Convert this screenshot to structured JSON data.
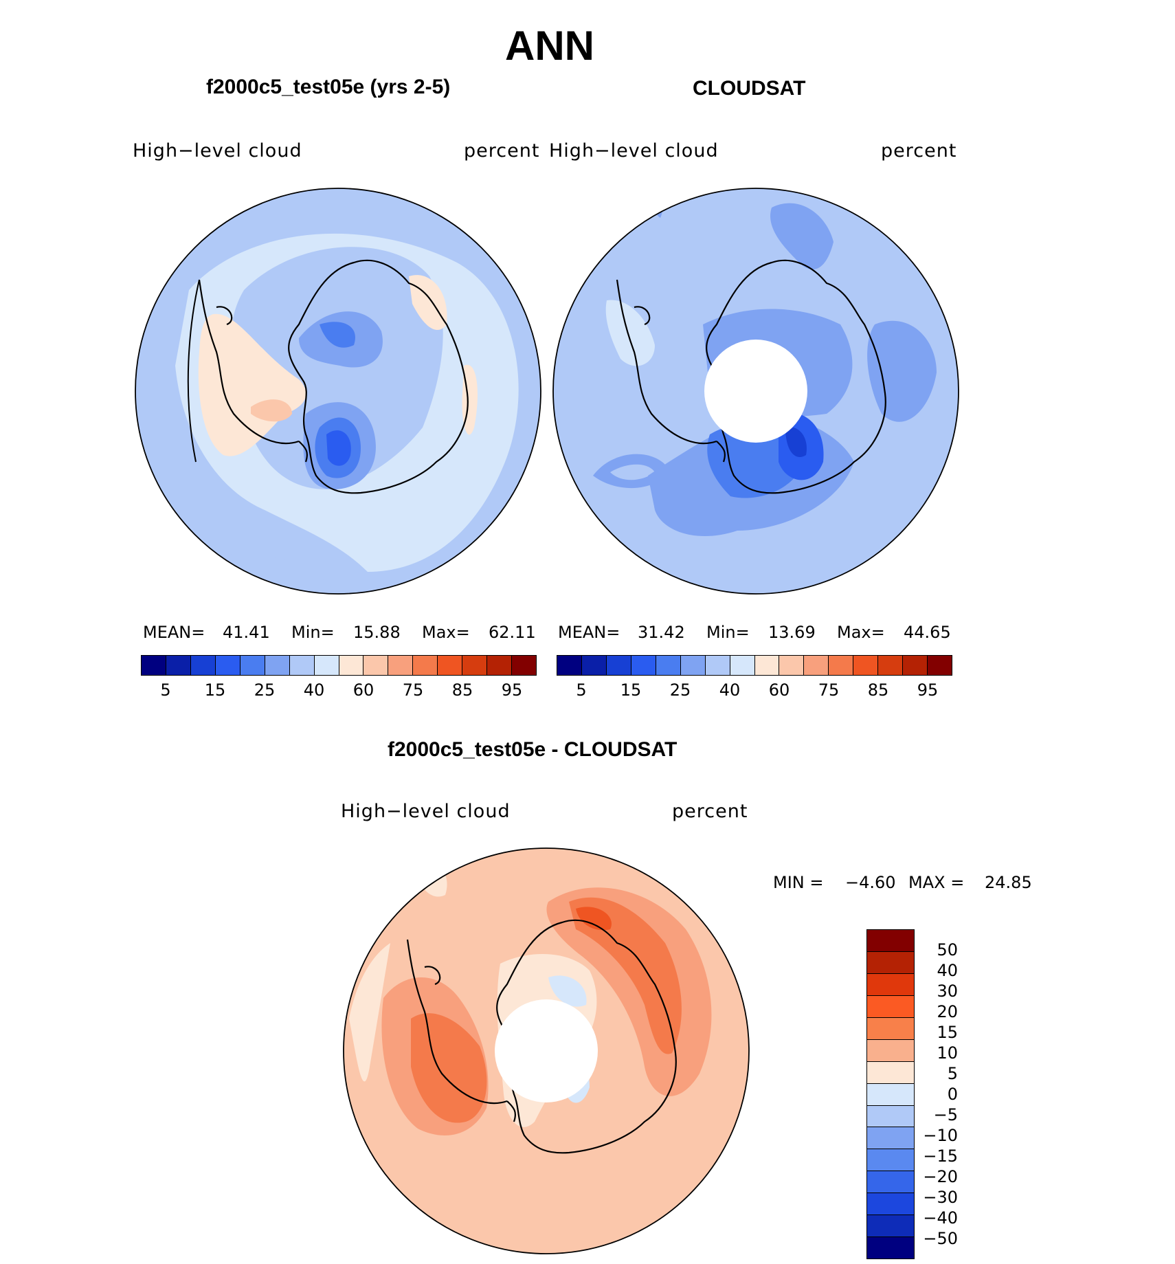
{
  "title": "ANN",
  "panels": {
    "model": {
      "title": "f2000c5_test05e (yrs 2-5)",
      "variable": "High−level  cloud",
      "units": "percent",
      "stats": {
        "mean_label": "MEAN=",
        "mean": "41.41",
        "min_label": "Min=",
        "min": "15.88",
        "max_label": "Max=",
        "max": "62.11"
      }
    },
    "obs": {
      "title": "CLOUDSAT",
      "variable": "High−level  cloud",
      "units": "percent",
      "stats": {
        "mean_label": "MEAN=",
        "mean": "31.42",
        "min_label": "Min=",
        "min": "13.69",
        "max_label": "Max=",
        "max": "44.65"
      }
    },
    "diff": {
      "title": "f2000c5_test05e - CLOUDSAT",
      "variable": "High−level  cloud",
      "units": "percent",
      "stats": {
        "min_label": "MIN  =",
        "min": "−4.60",
        "max_label": "MAX  =",
        "max": "24.85"
      }
    }
  },
  "colorbar_abs": {
    "colors": [
      "#000080",
      "#0a1fa8",
      "#1740d4",
      "#2a5cf0",
      "#4a7df0",
      "#7fa3f2",
      "#b0c9f7",
      "#d6e7fb",
      "#fde7d6",
      "#fbc7ab",
      "#f8a07d",
      "#f47a4b",
      "#ef5522",
      "#d63d0f",
      "#b42204",
      "#820000"
    ],
    "tick_labels": [
      "5",
      "15",
      "25",
      "40",
      "60",
      "75",
      "85",
      "95"
    ]
  },
  "colorbar_diff": {
    "colors": [
      "#820000",
      "#b42204",
      "#e0380c",
      "#fb5a23",
      "#f8804a",
      "#f9b08d",
      "#fde7d6",
      "#d6e7fb",
      "#b0c9f7",
      "#7fa3f2",
      "#5a89f0",
      "#3566ea",
      "#1c47de",
      "#0e2cb8",
      "#000080"
    ],
    "tick_labels": [
      "50",
      "40",
      "30",
      "20",
      "15",
      "10",
      "5",
      "0",
      "−5",
      "−10",
      "−15",
      "−20",
      "−30",
      "−40",
      "−50"
    ]
  }
}
